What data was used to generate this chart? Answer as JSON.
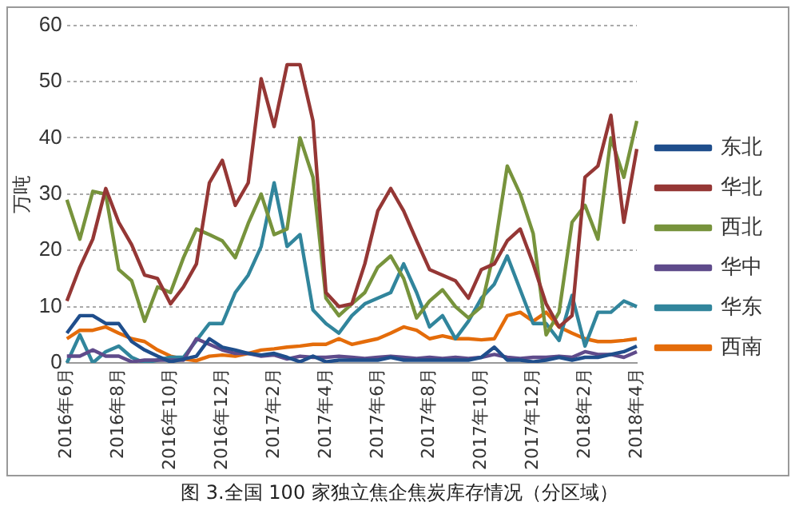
{
  "chart_data": {
    "type": "line",
    "ylabel": "万吨",
    "annotations": [
      "图 3.全国 100 家独立焦企焦炭库存情况（分区域）"
    ],
    "categories": [
      "2016年6月",
      null,
      null,
      null,
      "2016年8月",
      null,
      null,
      null,
      "2016年10月",
      null,
      null,
      null,
      "2016年12月",
      null,
      null,
      null,
      "2017年2月",
      null,
      null,
      null,
      "2017年4月",
      null,
      null,
      null,
      "2017年6月",
      null,
      null,
      null,
      "2017年8月",
      null,
      null,
      null,
      "2017年10月",
      null,
      null,
      null,
      "2017年12月",
      null,
      null,
      null,
      "2018年2月",
      null,
      null,
      null,
      "2018年4月"
    ],
    "series": [
      {
        "name": "东北",
        "color": "#1f4e8c",
        "values": [
          5.3,
          8.4,
          8.4,
          7,
          7,
          3.8,
          2.3,
          1.2,
          0.2,
          0.7,
          1.2,
          4.3,
          2.8,
          2.3,
          1.7,
          1.4,
          1.7,
          1,
          0.2,
          1.2,
          0.2,
          0.5,
          0.5,
          0.5,
          0.5,
          1,
          0.5,
          0.5,
          0.5,
          0.5,
          0.5,
          0.5,
          1,
          2.8,
          0.5,
          0.5,
          0.2,
          0.5,
          1,
          0.5,
          1,
          1,
          1.5,
          2,
          3
        ]
      },
      {
        "name": "华北",
        "color": "#953735",
        "values": [
          11,
          17,
          22,
          31,
          25,
          21,
          15.6,
          15,
          10.5,
          13.5,
          17.6,
          32,
          36,
          28,
          32,
          50.5,
          42,
          53,
          53,
          43,
          12.5,
          10,
          10.5,
          17.6,
          27,
          31,
          27,
          21.7,
          16.6,
          15.6,
          14.6,
          11.5,
          16.6,
          17.6,
          21.7,
          23.8,
          17.6,
          10.5,
          6.4,
          8.4,
          33,
          35,
          44,
          25,
          38
        ]
      },
      {
        "name": "西北",
        "color": "#77933c",
        "values": [
          29,
          22,
          30.5,
          30,
          16.6,
          14.6,
          7.4,
          13.5,
          12.5,
          18.7,
          23.8,
          22.8,
          21.7,
          18.7,
          24.8,
          30,
          22.8,
          23.8,
          40,
          33,
          11.5,
          8.4,
          10.5,
          12.5,
          17,
          19,
          15,
          8,
          11,
          13,
          10,
          8,
          10,
          20,
          35,
          30,
          23,
          5,
          9,
          25,
          28,
          22,
          40,
          33,
          43
        ]
      },
      {
        "name": "华中",
        "color": "#5f4b8b",
        "values": [
          1.2,
          1.2,
          2.3,
          1.2,
          1.2,
          0.2,
          0.5,
          0.5,
          0.5,
          0.5,
          4.3,
          3.3,
          2.3,
          1.7,
          1.7,
          1.2,
          1.4,
          0.7,
          1.2,
          1,
          1,
          1.2,
          1,
          0.8,
          1,
          1.2,
          1,
          0.8,
          1,
          0.8,
          1,
          0.8,
          1,
          1.5,
          1,
          0.8,
          1,
          1,
          1.2,
          1,
          2,
          1.5,
          1.5,
          1,
          2
        ]
      },
      {
        "name": "华东",
        "color": "#31859c",
        "values": [
          0,
          5,
          0,
          2,
          3,
          1,
          0,
          0.5,
          1,
          1,
          4,
          7,
          7,
          12.5,
          15.6,
          20.7,
          32,
          20.7,
          22.8,
          9.4,
          7,
          5.3,
          8.4,
          10.5,
          11.5,
          12.5,
          17.6,
          12.5,
          6.4,
          8.4,
          4.3,
          7.4,
          11.5,
          14,
          19,
          13,
          7,
          7,
          4,
          12,
          3,
          9,
          9,
          11,
          10
        ]
      },
      {
        "name": "西南",
        "color": "#e46c0a",
        "values": [
          4.3,
          5.8,
          5.8,
          6.4,
          5.3,
          4.3,
          3.8,
          2.3,
          1.2,
          0.7,
          0.4,
          1.2,
          1.4,
          1.2,
          1.7,
          2.3,
          2.5,
          2.8,
          3,
          3.3,
          3.3,
          4.3,
          3.3,
          3.8,
          4.3,
          5.3,
          6.4,
          5.8,
          4.3,
          4.8,
          4.3,
          4.3,
          4.1,
          4.3,
          8.4,
          9,
          7.4,
          9,
          6.4,
          5.3,
          4.3,
          3.8,
          3.8,
          4,
          4.3
        ]
      }
    ],
    "ylim": [
      0,
      60
    ],
    "yticks": [
      0,
      10,
      20,
      30,
      40,
      50,
      60
    ],
    "grid": "y",
    "legend": "right",
    "marker": "none",
    "line_style": "solid"
  }
}
